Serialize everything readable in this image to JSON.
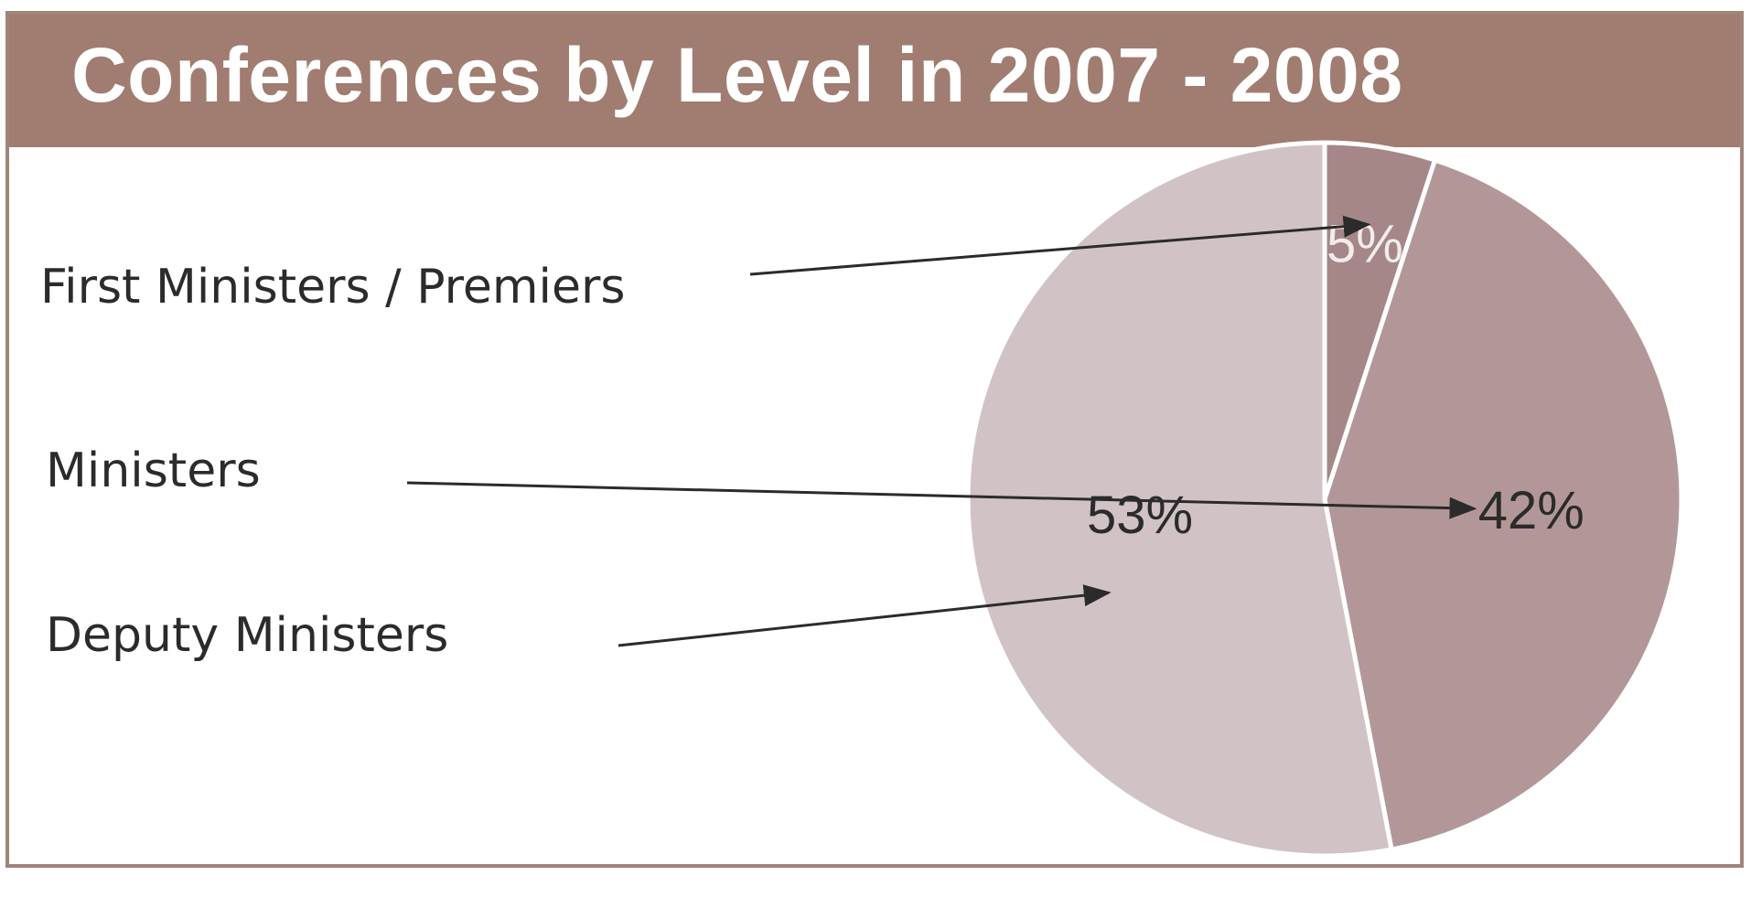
{
  "chart_data": {
    "type": "pie",
    "title": "Conferences by Level in 2007 - 2008",
    "slices": [
      {
        "name": "First Ministers / Premiers",
        "value": 5,
        "label": "5%",
        "color": "#a58787",
        "label_color": "#f2ecec"
      },
      {
        "name": "Ministers",
        "value": 42,
        "label": "42%",
        "color": "#b39798",
        "label_color": "#2b2b2b"
      },
      {
        "name": "Deputy Ministers",
        "value": 53,
        "label": "53%",
        "color": "#d1c3c5",
        "label_color": "#2b2b2b"
      }
    ],
    "start_angle_deg": 0,
    "direction": "clockwise",
    "legend_placement": "left, with arrows pointing to slices"
  },
  "colors": {
    "title_bar": "#a07d70",
    "frame_border": "#a08478",
    "title_text": "#ffffff",
    "arrow": "#2b2b2b",
    "slice_separator": "#ffffff"
  }
}
